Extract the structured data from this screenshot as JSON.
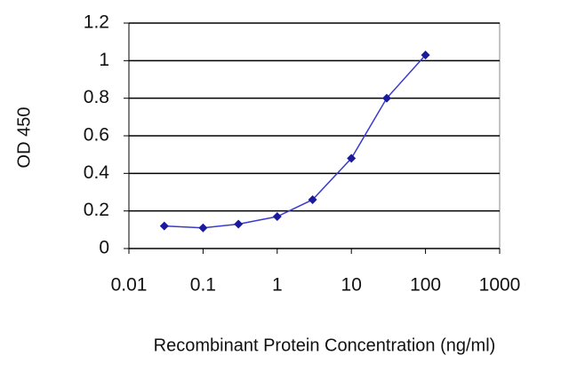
{
  "chart_data": {
    "type": "line",
    "x_label": "Recombinant Protein Concentration (ng/ml)",
    "y_label": "OD 450",
    "x": [
      0.03,
      0.1,
      0.3,
      1,
      3,
      10,
      30,
      100
    ],
    "series": [
      {
        "color": "#1a1a9c",
        "values": [
          0.12,
          0.11,
          0.13,
          0.17,
          0.26,
          0.48,
          0.8,
          1.03
        ]
      }
    ],
    "xscale": "log",
    "xlim": [
      0.01,
      1000
    ],
    "xticks": [
      0.01,
      0.1,
      1,
      10,
      100,
      1000
    ],
    "ylim": [
      0,
      1.2
    ],
    "yticks": [
      0,
      0.2,
      0.4,
      0.6,
      0.8,
      1,
      1.2
    ],
    "grid": true
  }
}
